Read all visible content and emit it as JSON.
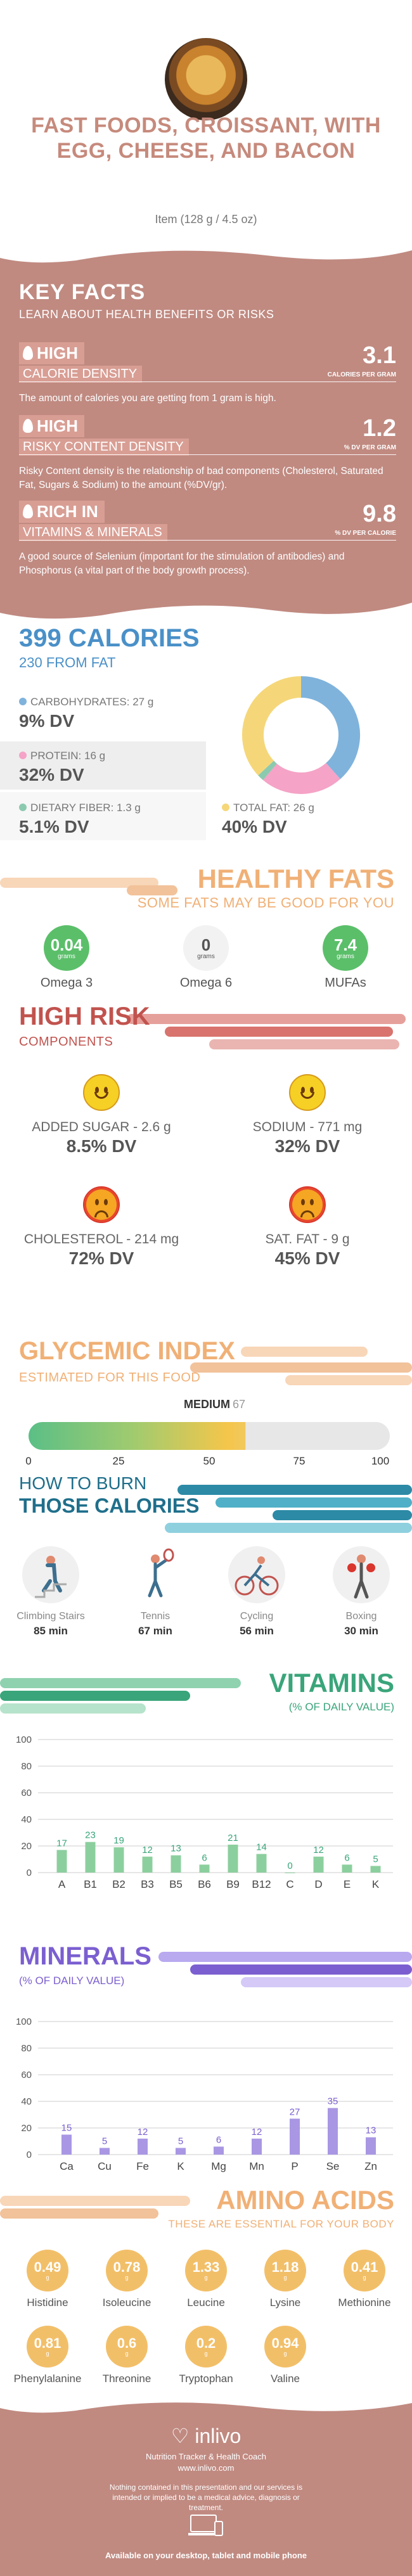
{
  "header": {
    "title": "FAST FOODS, CROISSANT, WITH EGG, CHEESE, AND BACON",
    "serving": "Item (128 g / 4.5 oz)"
  },
  "key_facts": {
    "heading": "KEY FACTS",
    "subheading": "LEARN ABOUT HEALTH BENEFITS OR RISKS",
    "items": [
      {
        "badge": "HIGH",
        "label": "CALORIE DENSITY",
        "value": "3.1",
        "unit": "CALORIES PER GRAM",
        "description": "The amount of calories you are getting from 1 gram is high."
      },
      {
        "badge": "HIGH",
        "label": "RISKY CONTENT DENSITY",
        "value": "1.2",
        "unit": "% DV PER GRAM",
        "description": "Risky Content density is the relationship of bad components (Cholesterol, Saturated Fat, Sugars & Sodium) to the amount (%DV/gr)."
      },
      {
        "badge": "RICH  IN",
        "label": "VITAMINS & MINERALS",
        "value": "9.8",
        "unit": "% DV PER CALORIE",
        "description": "A good source of Selenium (important for the stimulation of antibodies) and Phosphorus (a vital part of the body growth process)."
      }
    ]
  },
  "calories": {
    "title": "399 CALORIES",
    "from_fat": "230 FROM FAT",
    "nutrients": [
      {
        "label": "CARBOHYDRATES: 27 g",
        "dv": "9% DV",
        "color": "#7fb3dc"
      },
      {
        "label": "PROTEIN: 16 g",
        "dv": "32% DV",
        "color": "#f5a3c7"
      },
      {
        "label": "DIETARY FIBER: 1.3 g",
        "dv": "5.1% DV",
        "color": "#8ccab0"
      },
      {
        "label": "TOTAL FAT: 26 g",
        "dv": "40% DV",
        "color": "#f5d77a"
      }
    ]
  },
  "chart_data": [
    {
      "type": "pie",
      "title": "",
      "categories": [
        "Carbohydrates",
        "Protein",
        "Dietary Fiber",
        "Total Fat"
      ],
      "values": [
        27,
        16,
        1.3,
        26
      ],
      "colors": [
        "#7fb3dc",
        "#f5a3c7",
        "#8ccab0",
        "#f5d77a"
      ],
      "donut": true
    },
    {
      "type": "bar",
      "title": "VITAMINS",
      "categories": [
        "A",
        "B1",
        "B2",
        "B3",
        "B5",
        "B6",
        "B9",
        "B12",
        "C",
        "D",
        "E",
        "K"
      ],
      "values": [
        17,
        23,
        19,
        12,
        13,
        6,
        21,
        14,
        0,
        12,
        6,
        5
      ],
      "ylim": [
        0,
        100
      ],
      "yticks": [
        0,
        20,
        40,
        60,
        80,
        100
      ],
      "grid": true,
      "color": "#8ccf9e",
      "label_color": "#3aa57a"
    },
    {
      "type": "bar",
      "title": "MINERALS",
      "categories": [
        "Ca",
        "Cu",
        "Fe",
        "K",
        "Mg",
        "Mn",
        "P",
        "Se",
        "Zn"
      ],
      "values": [
        15,
        5,
        12,
        5,
        6,
        12,
        27,
        35,
        13
      ],
      "ylim": [
        0,
        100
      ],
      "yticks": [
        0,
        20,
        40,
        60,
        80,
        100
      ],
      "grid": true,
      "color": "#a997e3",
      "label_color": "#7b5fd0"
    }
  ],
  "healthy_fats": {
    "title": "HEALTHY FATS",
    "subtitle": "SOME FATS MAY BE GOOD FOR YOU",
    "items": [
      {
        "value": "0.04",
        "unit": "grams",
        "name": "Omega 3",
        "color": "#5bbf6a"
      },
      {
        "value": "0",
        "unit": "grams",
        "name": "Omega 6",
        "color": "#f2f2f2"
      },
      {
        "value": "7.4",
        "unit": "grams",
        "name": "MUFAs",
        "color": "#5bbf6a"
      }
    ]
  },
  "high_risk": {
    "title": "HIGH RISK",
    "subtitle": "COMPONENTS",
    "items": [
      {
        "label": "ADDED SUGAR - 2.6 g",
        "dv": "8.5% DV",
        "mood": "happy"
      },
      {
        "label": "SODIUM - 771 mg",
        "dv": "32% DV",
        "mood": "happy"
      },
      {
        "label": "CHOLESTEROL - 214 mg",
        "dv": "72% DV",
        "mood": "sad"
      },
      {
        "label": "SAT. FAT - 9 g",
        "dv": "45% DV",
        "mood": "sad"
      }
    ]
  },
  "glycemic": {
    "title": "GLYCEMIC INDEX",
    "subtitle": "ESTIMATED FOR THIS FOOD",
    "level": "MEDIUM",
    "value": 67,
    "ticks": [
      "0",
      "25",
      "50",
      "75",
      "100"
    ]
  },
  "burn": {
    "title_line1": "HOW TO BURN",
    "title_line2": "THOSE CALORIES",
    "activities": [
      {
        "name": "Climbing Stairs",
        "minutes": "85 min",
        "icon": "stairs-icon"
      },
      {
        "name": "Tennis",
        "minutes": "67 min",
        "icon": "tennis-icon"
      },
      {
        "name": "Cycling",
        "minutes": "56 min",
        "icon": "cycling-icon"
      },
      {
        "name": "Boxing",
        "minutes": "30 min",
        "icon": "boxing-icon"
      }
    ]
  },
  "vitamins": {
    "title": "VITAMINS",
    "subtitle": "(% OF DAILY VALUE)"
  },
  "minerals": {
    "title": "MINERALS",
    "subtitle": "(% OF DAILY VALUE)"
  },
  "amino": {
    "title": "AMINO ACIDS",
    "subtitle": "THESE ARE ESSENTIAL FOR YOUR BODY",
    "unit": "g",
    "items": [
      {
        "name": "Histidine",
        "value": "0.49"
      },
      {
        "name": "Isoleucine",
        "value": "0.78"
      },
      {
        "name": "Leucine",
        "value": "1.33"
      },
      {
        "name": "Lysine",
        "value": "1.18"
      },
      {
        "name": "Methionine",
        "value": "0.41"
      },
      {
        "name": "Phenylalanine",
        "value": "0.81"
      },
      {
        "name": "Threonine",
        "value": "0.6"
      },
      {
        "name": "Tryptophan",
        "value": "0.2"
      },
      {
        "name": "Valine",
        "value": "0.94"
      }
    ]
  },
  "footer": {
    "logo": "inlivo",
    "tagline": "Nutrition Tracker & Health Coach",
    "url": "www.inlivo.com",
    "disclaimer": "Nothing contained in this presentation and our services is intended or implied to be a medical advice, diagnosis or treatment.",
    "availability": "Available on your desktop, tablet and mobile phone"
  }
}
